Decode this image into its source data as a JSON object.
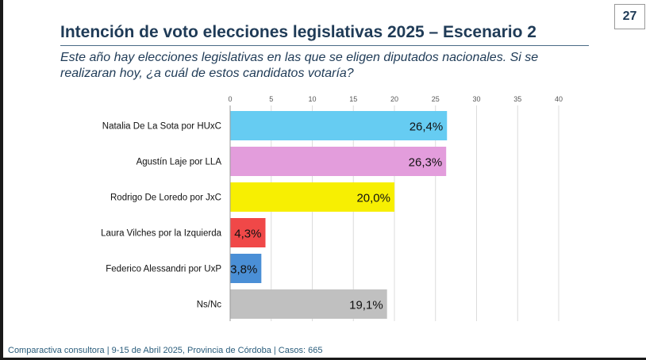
{
  "page_number": "27",
  "title": "Intención de voto elecciones legislativas 2025  – Escenario 2",
  "question": "Este año hay elecciones legislativas en las que se eligen diputados nacionales. Si se realizaran hoy, ¿a cuál de estos candidatos votaría?",
  "footer": "Comparactiva consultora | 9-15 de Abril 2025, Provincia de Córdoba | Casos: 665",
  "chart_data": {
    "type": "bar",
    "orientation": "horizontal",
    "title": "Intención de voto elecciones legislativas 2025  – Escenario 2",
    "xlabel": "",
    "ylabel": "",
    "xlim": [
      0,
      40
    ],
    "xticks": [
      0,
      5,
      10,
      15,
      20,
      25,
      30,
      35,
      40
    ],
    "grid": true,
    "categories": [
      "Natalia De La Sota por HUxC",
      "Agustín Laje por LLA",
      "Rodrigo De Loredo por JxC",
      "Laura Vilches por la Izquierda",
      "Federico Alessandri por UxP",
      "Ns/Nc"
    ],
    "values": [
      26.4,
      26.3,
      20.0,
      4.3,
      3.8,
      19.1
    ],
    "labels": [
      "26,4%",
      "26,3%",
      "20,0%",
      "4,3%",
      "3,8%",
      "19,1%"
    ],
    "colors": [
      "#66ccf2",
      "#e39ddc",
      "#f7ef02",
      "#f04848",
      "#4a8fd6",
      "#c0c0c0"
    ]
  }
}
